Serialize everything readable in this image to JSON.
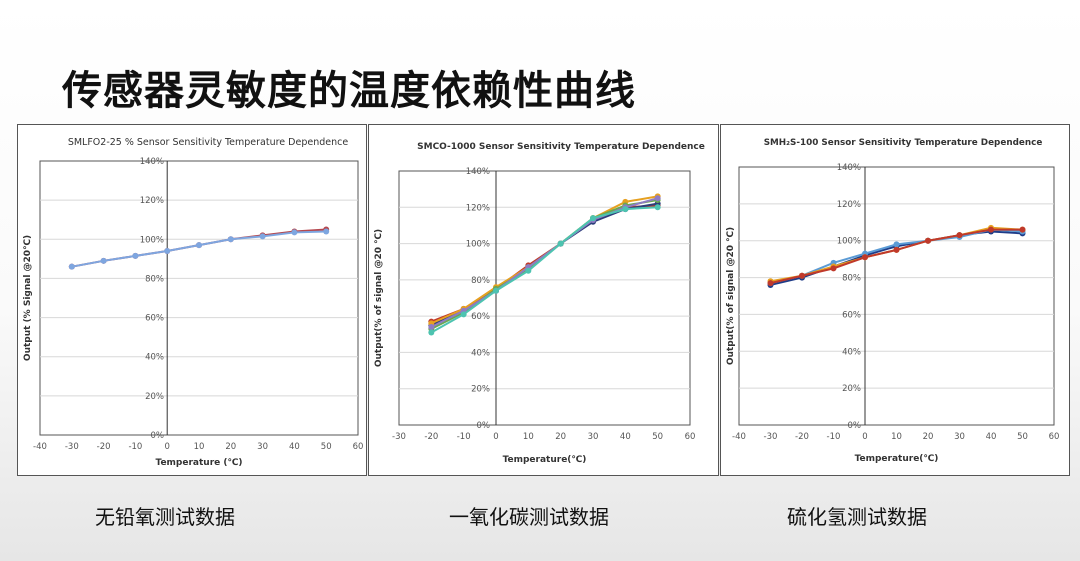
{
  "page": {
    "title": "传感器灵敏度的温度依赖性曲线",
    "captions": [
      "无铅氧测试数据",
      "一氧化碳测试数据",
      "硫化氢测试数据"
    ]
  },
  "chart_data": [
    {
      "type": "line",
      "title": "SMLFO2-25 % Sensor Sensitivity Temperature Dependence",
      "xlabel": "Temperature (℃)",
      "ylabel": "Output (% Signal @20℃)",
      "xlim": [
        -40,
        60
      ],
      "ylim": [
        0,
        140
      ],
      "x_ticks": [
        "-40",
        "-30",
        "-20",
        "-10",
        "0",
        "10",
        "20",
        "30",
        "40",
        "50",
        "60"
      ],
      "y_ticks": [
        "0%",
        "20%",
        "40%",
        "60%",
        "80%",
        "100%",
        "120%",
        "140%"
      ],
      "grid": true,
      "x": [
        -30,
        -20,
        -10,
        0,
        10,
        20,
        30,
        40,
        50
      ],
      "series": [
        {
          "values": [
            86,
            89,
            91.5,
            94,
            97,
            100,
            102,
            104,
            105
          ],
          "color": "#b5484f"
        },
        {
          "values": [
            86,
            89,
            91.5,
            94,
            97,
            100,
            101.5,
            103.5,
            104
          ],
          "color": "#7ea6e0"
        }
      ]
    },
    {
      "type": "line",
      "title": "SMCO-1000 Sensor Sensitivity Temperature Dependence",
      "xlabel": "Temperature(℃)",
      "ylabel": "Output(% of signal @20 ℃)",
      "xlim": [
        -30,
        60
      ],
      "ylim": [
        0,
        140
      ],
      "x_ticks": [
        "-30",
        "-20",
        "-10",
        "0",
        "10",
        "20",
        "30",
        "40",
        "50",
        "60"
      ],
      "y_ticks": [
        "0%",
        "20%",
        "40%",
        "60%",
        "80%",
        "100%",
        "120%",
        "140%"
      ],
      "grid": true,
      "x": [
        -20,
        -10,
        0,
        10,
        20,
        30,
        40,
        50
      ],
      "series": [
        {
          "values": [
            57,
            64,
            75,
            88,
            100,
            113,
            120,
            121
          ],
          "color": "#c0392b"
        },
        {
          "values": [
            55,
            63,
            74,
            87,
            100,
            112,
            119,
            122
          ],
          "color": "#2c3e7a"
        },
        {
          "values": [
            56,
            64,
            76,
            87,
            100,
            114,
            123,
            126
          ],
          "color": "#e6a020"
        },
        {
          "values": [
            53,
            62,
            75,
            86,
            100,
            114,
            121,
            124
          ],
          "color": "#6aa84f"
        },
        {
          "values": [
            54,
            63,
            74,
            87,
            100,
            113,
            120,
            125
          ],
          "color": "#8e7cc3"
        },
        {
          "values": [
            51,
            61,
            74,
            85,
            100,
            114,
            119,
            120
          ],
          "color": "#4dc3b0"
        }
      ]
    },
    {
      "type": "line",
      "title": "SMH₂S-100 Sensor Sensitivity Temperature Dependence",
      "xlabel": "Temperature(℃)",
      "ylabel": "Output(% of signal @20 ℃)",
      "xlim": [
        -40,
        60
      ],
      "ylim": [
        0,
        140
      ],
      "x_ticks": [
        "-40",
        "-30",
        "-20",
        "-10",
        "0",
        "10",
        "20",
        "30",
        "40",
        "50",
        "60"
      ],
      "y_ticks": [
        "0%",
        "20%",
        "40%",
        "60%",
        "80%",
        "100%",
        "120%",
        "140%"
      ],
      "grid": true,
      "x": [
        -30,
        -20,
        -10,
        0,
        10,
        20,
        30,
        40,
        50
      ],
      "series": [
        {
          "values": [
            76,
            80,
            86,
            92,
            97,
            100,
            103,
            105,
            104
          ],
          "color": "#1f3c88"
        },
        {
          "values": [
            77,
            81,
            88,
            93,
            98,
            100,
            102,
            106,
            105
          ],
          "color": "#5b9bd5"
        },
        {
          "values": [
            78,
            81,
            86,
            91,
            95,
            100,
            103,
            107,
            106
          ],
          "color": "#e6a020"
        },
        {
          "values": [
            77,
            81,
            85,
            91,
            95,
            100,
            103,
            106,
            106
          ],
          "color": "#c0392b"
        }
      ]
    }
  ]
}
